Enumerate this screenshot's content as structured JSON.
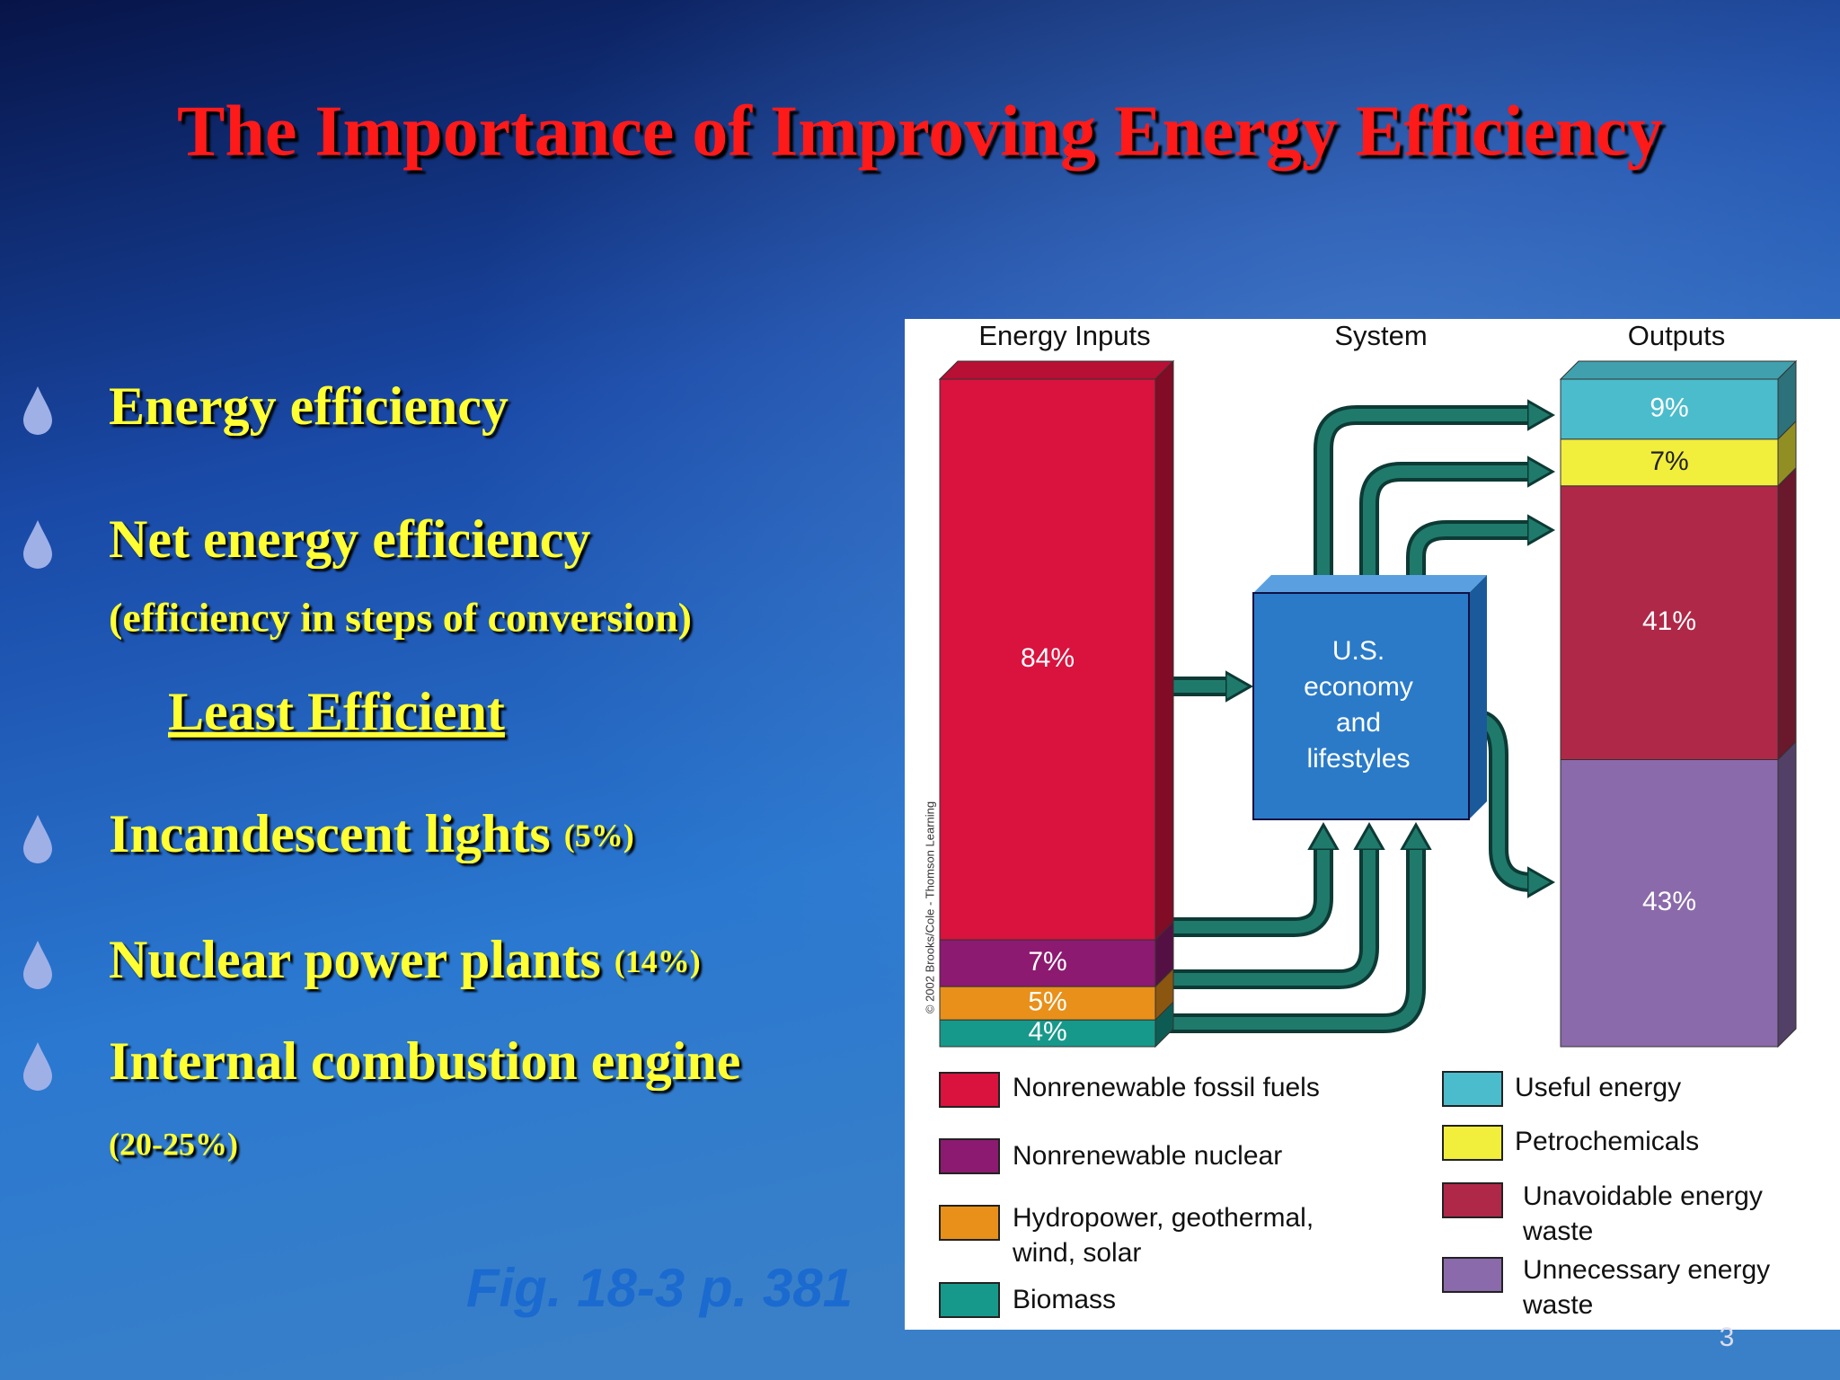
{
  "slide": {
    "title": "The Importance of Improving Energy Efficiency",
    "items": [
      "Energy efficiency",
      "Net energy efficiency"
    ],
    "items_note": "(efficiency in steps of conversion)",
    "subheading": "Least Efficient",
    "least_efficient": [
      {
        "name": "Incandescent lights",
        "value": "(5%)"
      },
      {
        "name": "Nuclear power plants",
        "value": "(14%)"
      },
      {
        "name": "Internal combustion engine",
        "value": "(20-25%)"
      }
    ],
    "figure_ref": "Fig. 18-3 p. 381",
    "page_number": "3"
  },
  "chart_data": {
    "type": "stacked_bar",
    "categories": [
      "Energy Inputs",
      "Outputs"
    ],
    "middle_label": "System",
    "system_label": [
      "U.S.",
      "economy",
      "and",
      "lifestyles"
    ],
    "credit": "© 2002 Brooks/Cole - Thomson Learning",
    "series": [
      {
        "name": "Nonrenewable fossil fuels",
        "color": "#d9123e",
        "values": [
          84,
          null
        ],
        "value_labels": [
          "84%",
          null
        ]
      },
      {
        "name": "Nonrenewable nuclear",
        "color": "#8c1a70",
        "values": [
          7,
          null
        ],
        "value_labels": [
          "7%",
          null
        ]
      },
      {
        "name": "Hydropower, geothermal, wind, solar",
        "color": "#e8901a",
        "values": [
          5,
          null
        ],
        "value_labels": [
          "5%",
          null
        ]
      },
      {
        "name": "Biomass",
        "color": "#16998a",
        "values": [
          4,
          null
        ],
        "value_labels": [
          "4%",
          null
        ]
      },
      {
        "name": "Useful energy",
        "color": "#4bbccc",
        "values": [
          null,
          9
        ],
        "value_labels": [
          null,
          "9%"
        ]
      },
      {
        "name": "Petrochemicals",
        "color": "#f2ee3c",
        "values": [
          null,
          7
        ],
        "value_labels": [
          null,
          "7%"
        ]
      },
      {
        "name": "Unavoidable energy waste",
        "color": "#b02848",
        "values": [
          null,
          41
        ],
        "value_labels": [
          null,
          "41%"
        ]
      },
      {
        "name": "Unnecessary energy waste",
        "color": "#8a6aaa",
        "values": [
          null,
          43
        ],
        "value_labels": [
          null,
          "43%"
        ]
      }
    ]
  }
}
